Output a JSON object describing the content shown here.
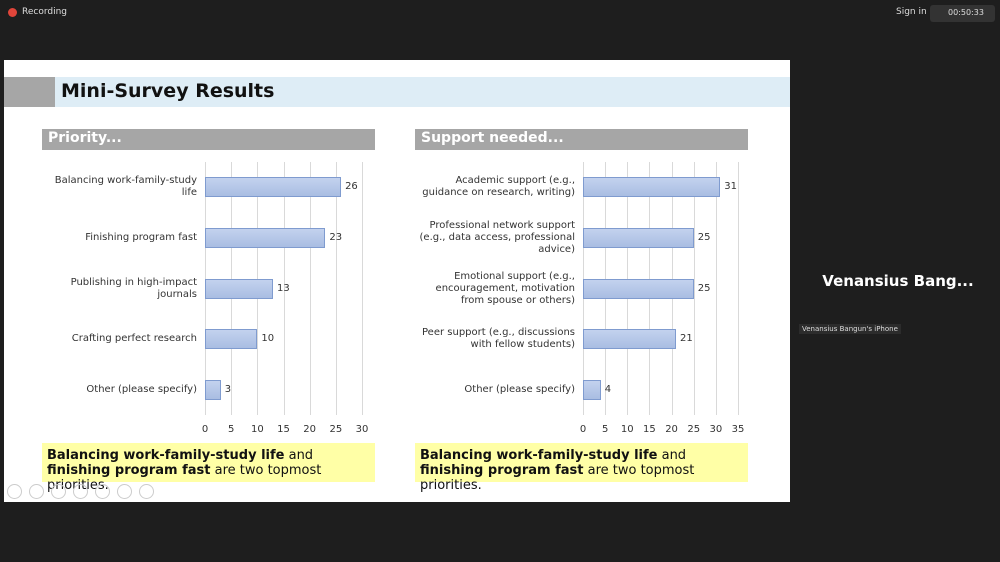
{
  "topbar": {
    "recording": "Recording",
    "sign_in": "Sign in",
    "timer": "00:50:33"
  },
  "slide": {
    "title": "Mini-Survey Results",
    "captions": [
      [
        {
          "text": "Balancing work-family-study life",
          "bold": true
        },
        {
          "text": " and ",
          "bold": false
        },
        {
          "text": "finishing program fast",
          "bold": true
        },
        {
          "text": " are two topmost priorities.",
          "bold": false
        }
      ],
      [
        {
          "text": "Balancing work-family-study life",
          "bold": true
        },
        {
          "text": " and ",
          "bold": false
        },
        {
          "text": "finishing program fast",
          "bold": true
        },
        {
          "text": " are two topmost priorities.",
          "bold": false
        }
      ]
    ]
  },
  "chart_data": [
    {
      "type": "bar",
      "orientation": "horizontal",
      "title": "Priority...",
      "categories": [
        "Balancing work-family-study life",
        "Finishing program fast",
        "Publishing in high-impact journals",
        "Crafting perfect research",
        "Other (please specify)"
      ],
      "values": [
        26,
        23,
        13,
        10,
        3
      ],
      "xlim": [
        0,
        30
      ],
      "xticks": [
        0,
        5,
        10,
        15,
        20,
        25,
        30
      ],
      "color": "#a9bde2",
      "grid": true
    },
    {
      "type": "bar",
      "orientation": "horizontal",
      "title": "Support needed...",
      "categories": [
        "Academic support (e.g., guidance on research, writing)",
        "Professional network support (e.g., data access, professional advice)",
        "Emotional support (e.g., encouragement, motivation from spouse or others)",
        "Peer support (e.g., discussions with fellow students)",
        "Other (please specify)"
      ],
      "values": [
        31,
        25,
        25,
        21,
        4
      ],
      "xlim": [
        0,
        35
      ],
      "xticks": [
        0,
        5,
        10,
        15,
        20,
        25,
        30,
        35
      ],
      "color": "#a9bde2",
      "grid": true
    }
  ],
  "participant": {
    "name": "Venansius  Bang...",
    "device": "Venansius Bangun's iPhone"
  }
}
